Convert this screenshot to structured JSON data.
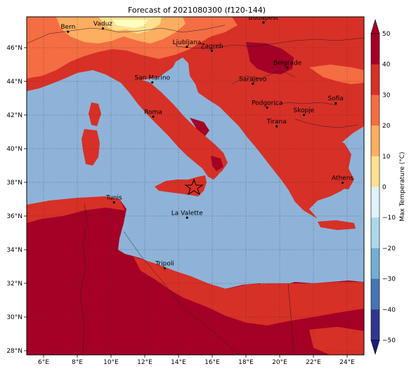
{
  "map": {
    "title": "Forecast of 2021080300 (f120-144)",
    "lon_ticks": [
      {
        "lon": 6,
        "label": "6°E"
      },
      {
        "lon": 8,
        "label": "8°E"
      },
      {
        "lon": 10,
        "label": "10°E"
      },
      {
        "lon": 12,
        "label": "12°E"
      },
      {
        "lon": 14,
        "label": "14°E"
      },
      {
        "lon": 16,
        "label": "16°E"
      },
      {
        "lon": 18,
        "label": "18°E"
      },
      {
        "lon": 20,
        "label": "20°E"
      },
      {
        "lon": 22,
        "label": "22°E"
      },
      {
        "lon": 24,
        "label": "24°E"
      }
    ],
    "lat_ticks": [
      {
        "lat": 28,
        "label": "28°N"
      },
      {
        "lat": 30,
        "label": "30°N"
      },
      {
        "lat": 32,
        "label": "32°N"
      },
      {
        "lat": 34,
        "label": "34°N"
      },
      {
        "lat": 36,
        "label": "36°N"
      },
      {
        "lat": 38,
        "label": "38°N"
      },
      {
        "lat": 40,
        "label": "40°N"
      },
      {
        "lat": 42,
        "label": "42°N"
      },
      {
        "lat": 44,
        "label": "44°N"
      },
      {
        "lat": 46,
        "label": "46°N"
      }
    ],
    "cities": [
      {
        "name": "Bern",
        "lon": 7.45,
        "lat": 46.95
      },
      {
        "name": "Vaduz",
        "lon": 9.52,
        "lat": 47.14
      },
      {
        "name": "Budapest",
        "lon": 19.04,
        "lat": 47.5
      },
      {
        "name": "Ljubljana",
        "lon": 14.5,
        "lat": 46.05
      },
      {
        "name": "Zagreb",
        "lon": 15.98,
        "lat": 45.81
      },
      {
        "name": "Belgrade",
        "lon": 20.46,
        "lat": 44.82
      },
      {
        "name": "San Marino",
        "lon": 12.45,
        "lat": 43.94
      },
      {
        "name": "Sarajevo",
        "lon": 18.41,
        "lat": 43.86
      },
      {
        "name": "Sofia",
        "lon": 23.32,
        "lat": 42.7
      },
      {
        "name": "Podgorica",
        "lon": 19.26,
        "lat": 42.44
      },
      {
        "name": "Skopje",
        "lon": 21.43,
        "lat": 42.0
      },
      {
        "name": "Roma",
        "lon": 12.5,
        "lat": 41.9
      },
      {
        "name": "Tirana",
        "lon": 19.82,
        "lat": 41.33
      },
      {
        "name": "Athens",
        "lon": 23.73,
        "lat": 37.98
      },
      {
        "name": "Tunis",
        "lon": 10.18,
        "lat": 36.81
      },
      {
        "name": "La Valette",
        "lon": 14.51,
        "lat": 35.9
      },
      {
        "name": "Tripoli",
        "lon": 13.19,
        "lat": 32.89
      }
    ],
    "star_marker": {
      "lon": 15.0,
      "lat": 37.75
    },
    "colors": {
      "sea": "#8fb3d8",
      "hot_dark": "#a50026",
      "hot": "#d73027",
      "warm": "#f46d43",
      "mild": "#fdae61",
      "cool": "#fee090",
      "pale": "#ffffbf"
    }
  },
  "colorbar": {
    "label": "Max Temperature (°C)",
    "ticks": [
      "50",
      "40",
      "30",
      "20",
      "10",
      "0",
      "−10",
      "−20",
      "−30",
      "−40",
      "−50"
    ],
    "colors": [
      "#a50026",
      "#d73027",
      "#f46d43",
      "#fdae61",
      "#fee090",
      "#ffffbf",
      "#e0f3f8",
      "#abd9e9",
      "#74add1",
      "#4575b4",
      "#313695",
      "#1a1f7a"
    ]
  }
}
